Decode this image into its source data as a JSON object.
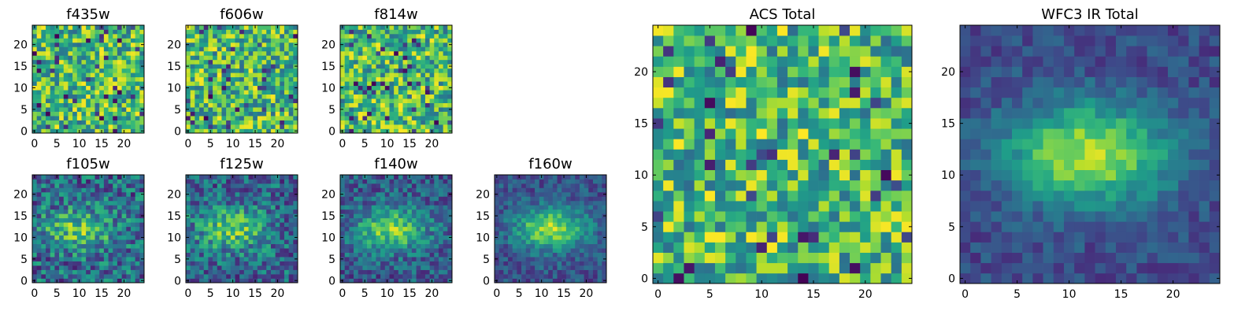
{
  "chart_data": [
    {
      "type": "heatmap",
      "title": "f435w",
      "xticks": [
        0,
        5,
        10,
        15,
        20
      ],
      "yticks": [
        0,
        5,
        10,
        15,
        20
      ],
      "xlim": [
        -0.5,
        24.5
      ],
      "ylim": [
        -0.5,
        24.5
      ],
      "grid_size": 25,
      "colormap": "viridis",
      "pattern": "noise",
      "seed": 11
    },
    {
      "type": "heatmap",
      "title": "f606w",
      "xticks": [
        0,
        5,
        10,
        15,
        20
      ],
      "yticks": [
        0,
        5,
        10,
        15,
        20
      ],
      "xlim": [
        -0.5,
        24.5
      ],
      "ylim": [
        -0.5,
        24.5
      ],
      "grid_size": 25,
      "colormap": "viridis",
      "pattern": "noise",
      "seed": 23
    },
    {
      "type": "heatmap",
      "title": "f814w",
      "xticks": [
        0,
        5,
        10,
        15,
        20
      ],
      "yticks": [
        0,
        5,
        10,
        15,
        20
      ],
      "xlim": [
        -0.5,
        24.5
      ],
      "ylim": [
        -0.5,
        24.5
      ],
      "grid_size": 25,
      "colormap": "viridis",
      "pattern": "noise",
      "seed": 37
    },
    {
      "type": "heatmap",
      "title": "f105w",
      "xticks": [
        0,
        5,
        10,
        15,
        20
      ],
      "yticks": [
        0,
        5,
        10,
        15,
        20
      ],
      "xlim": [
        -0.5,
        24.5
      ],
      "ylim": [
        -0.5,
        24.5
      ],
      "grid_size": 25,
      "colormap": "viridis",
      "pattern": "blob",
      "blob_center": [
        10,
        12
      ],
      "noise": 0.55,
      "seed": 41
    },
    {
      "type": "heatmap",
      "title": "f125w",
      "xticks": [
        0,
        5,
        10,
        15,
        20
      ],
      "yticks": [
        0,
        5,
        10,
        15,
        20
      ],
      "xlim": [
        -0.5,
        24.5
      ],
      "ylim": [
        -0.5,
        24.5
      ],
      "grid_size": 25,
      "colormap": "viridis",
      "pattern": "blob",
      "blob_center": [
        10,
        12
      ],
      "noise": 0.5,
      "seed": 53
    },
    {
      "type": "heatmap",
      "title": "f140w",
      "xticks": [
        0,
        5,
        10,
        15,
        20
      ],
      "yticks": [
        0,
        5,
        10,
        15,
        20
      ],
      "xlim": [
        -0.5,
        24.5
      ],
      "ylim": [
        -0.5,
        24.5
      ],
      "grid_size": 25,
      "colormap": "viridis",
      "pattern": "blob",
      "blob_center": [
        11,
        12
      ],
      "noise": 0.4,
      "seed": 67
    },
    {
      "type": "heatmap",
      "title": "f160w",
      "xticks": [
        0,
        5,
        10,
        15,
        20
      ],
      "yticks": [
        0,
        5,
        10,
        15,
        20
      ],
      "xlim": [
        -0.5,
        24.5
      ],
      "ylim": [
        -0.5,
        24.5
      ],
      "grid_size": 25,
      "colormap": "viridis",
      "pattern": "blob",
      "blob_center": [
        12,
        12
      ],
      "noise": 0.3,
      "seed": 79
    },
    {
      "type": "heatmap",
      "title": "ACS Total",
      "xticks": [
        0,
        5,
        10,
        15,
        20
      ],
      "yticks": [
        0,
        5,
        10,
        15,
        20
      ],
      "xlim": [
        -0.5,
        24.5
      ],
      "ylim": [
        -0.5,
        24.5
      ],
      "grid_size": 25,
      "colormap": "viridis",
      "pattern": "noise",
      "seed": 97
    },
    {
      "type": "heatmap",
      "title": "WFC3 IR Total",
      "xticks": [
        0,
        5,
        10,
        15,
        20
      ],
      "yticks": [
        0,
        5,
        10,
        15,
        20
      ],
      "xlim": [
        -0.5,
        24.5
      ],
      "ylim": [
        -0.5,
        24.5
      ],
      "grid_size": 25,
      "colormap": "viridis",
      "pattern": "blob",
      "blob_center": [
        12,
        12
      ],
      "noise": 0.22,
      "seed": 101
    }
  ]
}
